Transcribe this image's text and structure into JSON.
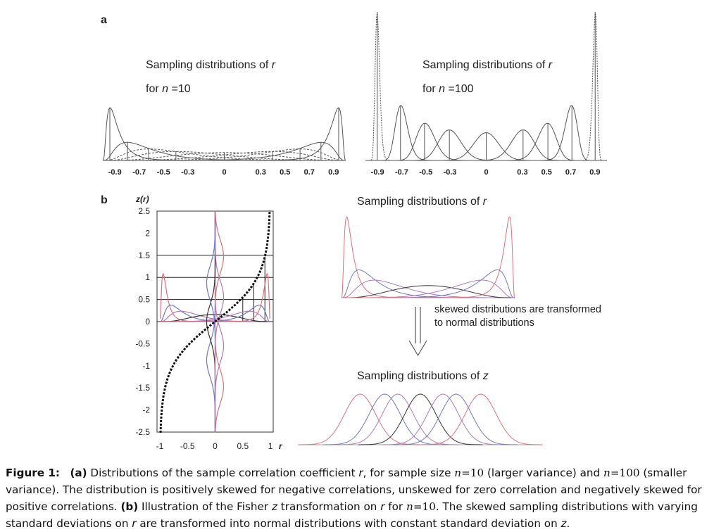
{
  "figure": {
    "panel_a_label": "a",
    "panel_b_label": "b",
    "panel_a_left": {
      "title_line1": "Sampling distributions of ",
      "title_r": "r",
      "title_line2_prefix": "for ",
      "title_n": "n",
      "title_line2_suffix": " =10",
      "ticks": [
        "-0.9",
        "-0.7",
        "-0.5",
        "-0.3",
        "0",
        "0.3",
        "0.5",
        "0.7",
        "0.9"
      ]
    },
    "panel_a_right": {
      "title_line1": "Sampling distributions of ",
      "title_r": "r",
      "title_line2_prefix": "for ",
      "title_n": "n",
      "title_line2_suffix": " =100",
      "ticks": [
        "-0.9",
        "-0.7",
        "-0.5",
        "-0.3",
        "0",
        "0.3",
        "0.5",
        "0.7",
        "0.9"
      ]
    },
    "panel_b_plot": {
      "ylabel": "z(r)",
      "yticks": [
        "2.5",
        "2",
        "1.5",
        "1",
        "0.5",
        "0",
        "-0.5",
        "-1",
        "-1.5",
        "-2",
        "-2.5"
      ],
      "xticks": [
        "-1",
        "-0.5",
        "0",
        "0.5",
        "1"
      ],
      "xlabel": "r"
    },
    "panel_b_right": {
      "top_title_prefix": "Sampling distributions of ",
      "top_title_var": "r",
      "arrow_line1": "skewed distributions are transformed",
      "arrow_line2": "to normal distributions",
      "bottom_title_prefix": "Sampling distributions of ",
      "bottom_title_var": "z"
    },
    "colors": {
      "red": "#e0707a",
      "blue": "#6f78c8",
      "purple": "#b07ab8",
      "black": "#333333"
    }
  },
  "caption": {
    "label": "Figure 1:",
    "a": "(a)",
    "t1": " Distributions of the sample correlation coefficient ",
    "r": "r",
    "t2": ", for sample size ",
    "n": "n",
    "eq1": "=10",
    "t3": " (larger variance) and ",
    "eq2": "=100",
    "t4": " (smaller variance). The distribution is positively skewed for negative correlations, unskewed for zero correlation and negatively skewed for positive correlations. ",
    "b": "(b)",
    "t5": " Illustration of the Fisher ",
    "z": "z",
    "t6": " transformation on ",
    "t7": " for ",
    "eq3": "=10",
    "t8": ". The skewed sampling distributions with varying standard deviations on ",
    "t9": " are transformed into normal distributions with constant standard deviation on ",
    "t10": "."
  }
}
